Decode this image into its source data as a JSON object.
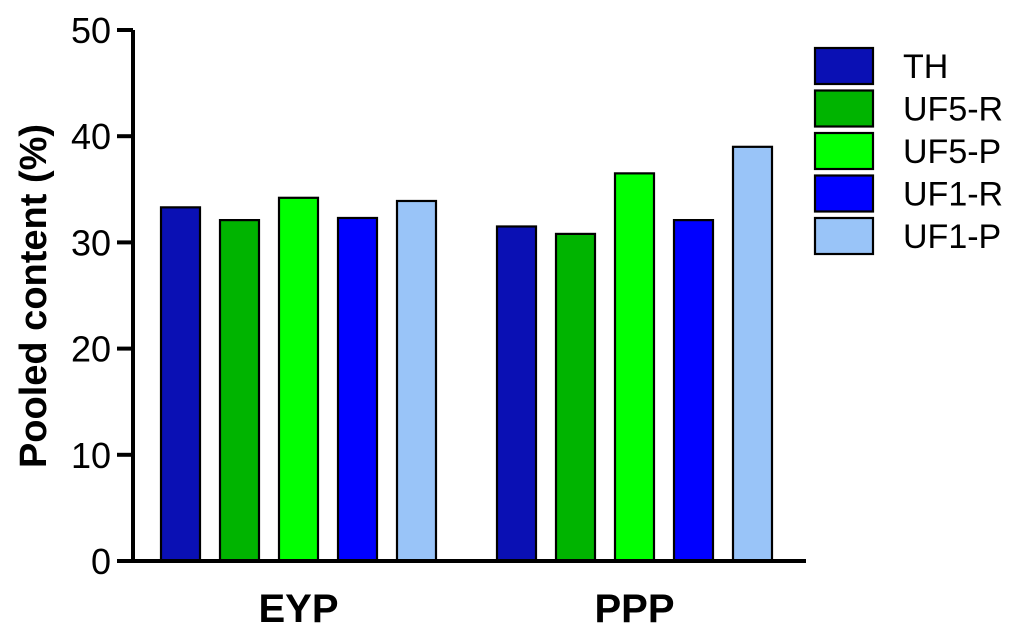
{
  "chart_data": {
    "type": "bar",
    "title": "",
    "xlabel": "",
    "ylabel": "Pooled content (%)",
    "categories": [
      "EYP",
      "PPP"
    ],
    "ylim": [
      0,
      50
    ],
    "yticks": [
      0,
      10,
      20,
      30,
      40,
      50
    ],
    "grid": false,
    "legend_position": "right",
    "series": [
      {
        "name": "TH",
        "color": "#0A10B4",
        "values": [
          33.3,
          31.5
        ]
      },
      {
        "name": "UF5-R",
        "color": "#00B400",
        "values": [
          32.1,
          30.8
        ]
      },
      {
        "name": "UF5-P",
        "color": "#00FF00",
        "values": [
          34.2,
          36.5
        ]
      },
      {
        "name": "UF1-R",
        "color": "#0000FF",
        "values": [
          32.3,
          32.1
        ]
      },
      {
        "name": "UF1-P",
        "color": "#99C4F8",
        "values": [
          33.9,
          39.0
        ]
      }
    ]
  }
}
